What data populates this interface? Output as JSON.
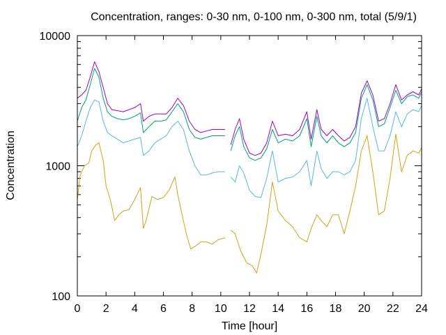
{
  "chart_data": {
    "type": "line",
    "title": "Concentration, ranges: 0-30 nm, 0-100 nm, 0-300 nm, total (5/9/1)",
    "xlabel": "Time [hour]",
    "ylabel": "Concentration",
    "xlim": [
      0,
      24
    ],
    "ylim": [
      100,
      10000
    ],
    "yscale": "log",
    "grid": false,
    "legend": "none",
    "x_ticks": [
      "0",
      "2",
      "4",
      "6",
      "8",
      "10",
      "12",
      "14",
      "16",
      "18",
      "20",
      "22",
      "24"
    ],
    "x_tick_values": [
      0,
      2,
      4,
      6,
      8,
      10,
      12,
      14,
      16,
      18,
      20,
      22,
      24
    ],
    "y_ticks": [
      "100",
      "1000",
      "10000"
    ],
    "y_tick_values": [
      100,
      1000,
      10000
    ],
    "gaps": [
      [
        4.55,
        4.65
      ],
      [
        10.35,
        10.6
      ]
    ],
    "series": [
      {
        "range": "0-30 nm",
        "color": "#d4a017",
        "x": [
          0,
          0.2,
          0.5,
          0.8,
          1.0,
          1.3,
          1.5,
          1.8,
          2.0,
          2.3,
          2.6,
          2.9,
          3.2,
          3.6,
          4.0,
          4.4,
          4.6,
          4.8,
          5.2,
          5.6,
          6.0,
          6.4,
          6.8,
          7.0,
          7.3,
          7.6,
          7.9,
          8.2,
          8.6,
          9.0,
          9.4,
          9.8,
          10.3,
          10.7,
          11.0,
          11.4,
          11.8,
          12.2,
          12.5,
          12.8,
          13.2,
          13.6,
          14.0,
          14.5,
          15.0,
          15.5,
          16.0,
          16.3,
          16.7,
          17.0,
          17.4,
          17.8,
          18.2,
          18.6,
          19.0,
          19.4,
          19.8,
          20.2,
          20.6,
          21.0,
          21.4,
          21.8,
          22.2,
          22.6,
          23.0,
          23.4,
          23.8,
          24.0
        ],
        "y": [
          550,
          850,
          1000,
          1050,
          1300,
          1450,
          1500,
          1100,
          700,
          550,
          380,
          420,
          450,
          460,
          550,
          680,
          330,
          380,
          580,
          550,
          570,
          650,
          820,
          600,
          420,
          300,
          230,
          240,
          260,
          260,
          250,
          270,
          280,
          320,
          300,
          220,
          180,
          170,
          150,
          210,
          350,
          750,
          450,
          380,
          340,
          280,
          260,
          330,
          420,
          380,
          340,
          420,
          420,
          300,
          450,
          700,
          1300,
          1700,
          900,
          420,
          450,
          800,
          1750,
          900,
          1200,
          1300,
          1250,
          1380
        ]
      },
      {
        "range": "0-100 nm",
        "color": "#56b4e9",
        "x": [
          0,
          0.3,
          0.6,
          0.9,
          1.2,
          1.5,
          1.8,
          2.1,
          2.4,
          2.8,
          3.2,
          3.6,
          4.0,
          4.4,
          4.6,
          5.0,
          5.4,
          5.8,
          6.2,
          6.6,
          7.0,
          7.4,
          7.8,
          8.2,
          8.6,
          9.0,
          9.4,
          9.8,
          10.3,
          10.7,
          11.0,
          11.3,
          11.6,
          12.0,
          12.4,
          12.8,
          13.2,
          13.6,
          14.0,
          14.5,
          15.0,
          15.5,
          16.0,
          16.3,
          16.7,
          17.0,
          17.4,
          17.8,
          18.2,
          18.6,
          19.0,
          19.4,
          19.8,
          20.2,
          20.6,
          21.0,
          21.4,
          21.8,
          22.2,
          22.6,
          23.0,
          23.4,
          23.8,
          24.0
        ],
        "y": [
          1400,
          1700,
          2200,
          2800,
          3200,
          3100,
          2200,
          1800,
          1700,
          1600,
          1500,
          1550,
          1600,
          1650,
          1200,
          1300,
          1500,
          1600,
          1700,
          2000,
          2200,
          1900,
          1300,
          1000,
          850,
          850,
          880,
          900,
          900,
          820,
          750,
          1000,
          880,
          650,
          580,
          570,
          800,
          1300,
          750,
          800,
          820,
          900,
          1100,
          700,
          1300,
          950,
          800,
          900,
          900,
          850,
          900,
          1100,
          2300,
          3300,
          2000,
          1300,
          1300,
          1700,
          2600,
          2000,
          2500,
          2700,
          2600,
          2900
        ]
      },
      {
        "range": "0-300 nm",
        "color": "#009e73",
        "x": [
          0,
          0.3,
          0.6,
          0.9,
          1.2,
          1.5,
          1.8,
          2.1,
          2.4,
          2.8,
          3.2,
          3.6,
          4.0,
          4.4,
          4.6,
          5.0,
          5.4,
          5.8,
          6.2,
          6.6,
          7.0,
          7.4,
          7.8,
          8.2,
          8.6,
          9.0,
          9.4,
          9.8,
          10.3,
          10.7,
          11.0,
          11.3,
          11.6,
          12.0,
          12.4,
          12.8,
          13.2,
          13.6,
          14.0,
          14.5,
          15.0,
          15.5,
          16.0,
          16.3,
          16.7,
          17.0,
          17.4,
          17.8,
          18.2,
          18.6,
          19.0,
          19.4,
          19.8,
          20.2,
          20.6,
          21.0,
          21.4,
          21.8,
          22.2,
          22.6,
          23.0,
          23.4,
          23.8,
          24.0
        ],
        "y": [
          2200,
          2800,
          3200,
          4200,
          5600,
          4800,
          3300,
          2600,
          2400,
          2300,
          2250,
          2300,
          2400,
          2550,
          1800,
          2000,
          2200,
          2200,
          2250,
          2600,
          3000,
          2600,
          1900,
          1650,
          1600,
          1650,
          1700,
          1700,
          1700,
          1300,
          1700,
          2000,
          1400,
          1150,
          1100,
          1150,
          1350,
          1900,
          1500,
          1600,
          1550,
          1700,
          2300,
          1400,
          2400,
          1700,
          1500,
          1700,
          1500,
          1400,
          1500,
          1800,
          3300,
          4200,
          3200,
          2000,
          2100,
          2800,
          3800,
          3000,
          3400,
          3500,
          3300,
          3700
        ]
      },
      {
        "range": "total",
        "color": "#9400d3",
        "x": [
          0,
          0.3,
          0.6,
          0.9,
          1.2,
          1.5,
          1.8,
          2.1,
          2.4,
          2.8,
          3.2,
          3.6,
          4.0,
          4.4,
          4.6,
          5.0,
          5.4,
          5.8,
          6.2,
          6.6,
          7.0,
          7.4,
          7.8,
          8.2,
          8.6,
          9.0,
          9.4,
          9.8,
          10.3,
          10.7,
          11.0,
          11.3,
          11.6,
          12.0,
          12.4,
          12.8,
          13.2,
          13.6,
          14.0,
          14.5,
          15.0,
          15.5,
          16.0,
          16.3,
          16.7,
          17.0,
          17.4,
          17.8,
          18.2,
          18.6,
          19.0,
          19.4,
          19.8,
          20.2,
          20.6,
          21.0,
          21.4,
          21.8,
          22.2,
          22.6,
          23.0,
          23.4,
          23.8,
          24.0
        ],
        "y": [
          3300,
          3500,
          3800,
          4800,
          6300,
          5300,
          4000,
          3000,
          2700,
          2650,
          2600,
          2700,
          2800,
          3000,
          2200,
          2400,
          2500,
          2500,
          2500,
          2800,
          3300,
          2900,
          2200,
          1900,
          1800,
          1850,
          1900,
          1900,
          1900,
          1450,
          1900,
          2300,
          1600,
          1250,
          1200,
          1250,
          1500,
          2200,
          1700,
          1750,
          1700,
          1900,
          2600,
          1600,
          2700,
          1900,
          1700,
          1900,
          1700,
          1550,
          1650,
          2000,
          3600,
          4500,
          3500,
          2200,
          2300,
          3000,
          4200,
          3200,
          3500,
          3700,
          3500,
          3900
        ]
      }
    ]
  }
}
